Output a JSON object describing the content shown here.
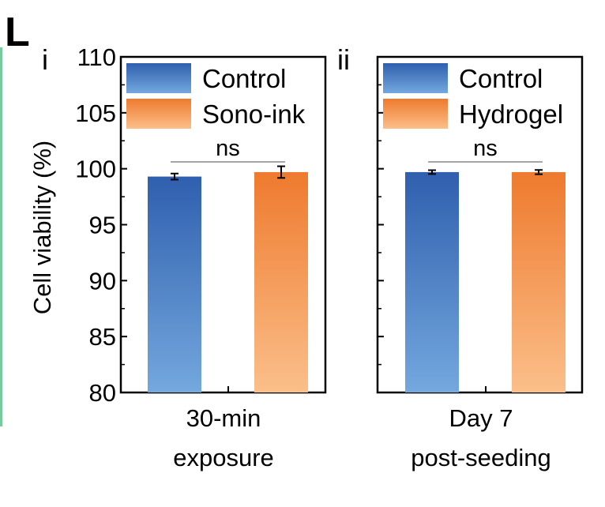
{
  "figure": {
    "panel_letter": "L"
  },
  "colors": {
    "control_top": "#2f5fae",
    "control_bottom": "#74a8de",
    "treat_top": "#ee7a2e",
    "treat_bottom": "#fbbf8a",
    "frame": "#000000",
    "sig_line": "#888888",
    "left_edge_accent": "#3cb371"
  },
  "chart_data": [
    {
      "type": "bar",
      "panel": "i",
      "ylabel": "Cell viability (%)",
      "ylim": [
        80,
        110
      ],
      "yticks": [
        80,
        85,
        90,
        95,
        100,
        105,
        110
      ],
      "category_lines": [
        "30-min",
        "exposure"
      ],
      "series": [
        {
          "name": "Control",
          "value": 99.3,
          "error": 0.2
        },
        {
          "name": "Sono-ink",
          "value": 99.7,
          "error": 0.45
        }
      ],
      "significance": "ns",
      "legend": "top-left"
    },
    {
      "type": "bar",
      "panel": "ii",
      "ylim": [
        80,
        110
      ],
      "yticks": [
        80,
        85,
        90,
        95,
        100,
        105,
        110
      ],
      "category_lines": [
        "Day 7",
        "post-seeding"
      ],
      "series": [
        {
          "name": "Control",
          "value": 99.7,
          "error": 0.1
        },
        {
          "name": "Hydrogel",
          "value": 99.7,
          "error": 0.12
        }
      ],
      "significance": "ns",
      "legend": "top-left"
    }
  ]
}
